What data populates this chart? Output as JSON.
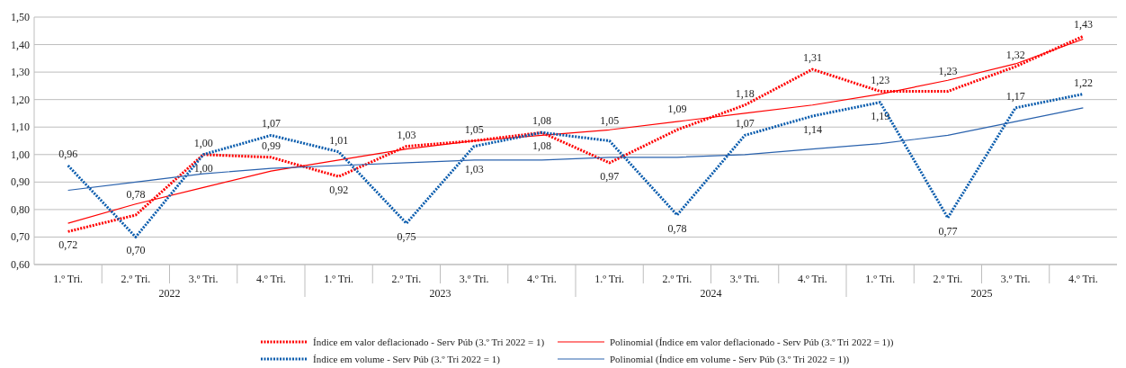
{
  "chart_data": {
    "type": "line",
    "categories": [
      "1.º Tri.",
      "2.º Tri.",
      "3.º Tri.",
      "4.º Tri.",
      "1.º Tri.",
      "2.º Tri.",
      "3.º Tri.",
      "4.º Tri.",
      "1.º Tri.",
      "2.º Tri.",
      "3.º Tri.",
      "4.º Tri.",
      "1.º Tri.",
      "2.º Tri.",
      "3.º Tri.",
      "4.º Tri."
    ],
    "annotations": [
      "2022",
      "2023",
      "2024",
      "2025"
    ],
    "ylim": [
      0.6,
      1.5
    ],
    "yticks": [
      {
        "value": 0.6,
        "label": "0,60"
      },
      {
        "value": 0.7,
        "label": "0,70"
      },
      {
        "value": 0.8,
        "label": "0,80"
      },
      {
        "value": 0.9,
        "label": "0,90"
      },
      {
        "value": 1.0,
        "label": "1,00"
      },
      {
        "value": 1.1,
        "label": "1,10"
      },
      {
        "value": 1.2,
        "label": "1,20"
      },
      {
        "value": 1.3,
        "label": "1,30"
      },
      {
        "value": 1.4,
        "label": "1,40"
      },
      {
        "value": 1.5,
        "label": "1,50"
      }
    ],
    "grid": "y",
    "legend": "bottom",
    "marker": "none",
    "series": [
      {
        "name": "Índice em valor deflacionado - Serv Púb (3.º Tri 2022 = 1)",
        "color": "#ff0000",
        "line_style": "dotted",
        "values": [
          0.72,
          0.78,
          1.0,
          0.99,
          0.92,
          1.03,
          1.05,
          1.08,
          0.97,
          1.09,
          1.18,
          1.31,
          1.23,
          1.23,
          1.32,
          1.43
        ],
        "value_labels": [
          "0,72",
          "0,78",
          "1,00",
          "0,99",
          "0,92",
          "1,03",
          "1,05",
          "1,08",
          "0,97",
          "1,09",
          "1,18",
          "1,31",
          "1,23",
          "1,23",
          "1,32",
          "1,43"
        ]
      },
      {
        "name": "Polinomial (Índice em valor deflacionado - Serv Púb (3.º Tri 2022 = 1))",
        "color": "#ff0000",
        "line_style": "solid",
        "values": [
          0.75,
          0.82,
          0.88,
          0.94,
          0.98,
          1.02,
          1.05,
          1.07,
          1.09,
          1.12,
          1.15,
          1.18,
          1.22,
          1.27,
          1.33,
          1.42
        ]
      },
      {
        "name": "Índice em volume - Serv Púb (3.º Tri 2022 = 1)",
        "color": "#0a5cad",
        "line_style": "dotted",
        "values": [
          0.96,
          0.7,
          1.0,
          1.07,
          1.01,
          0.75,
          1.03,
          1.08,
          1.05,
          0.78,
          1.07,
          1.14,
          1.19,
          0.77,
          1.17,
          1.22
        ],
        "value_labels": [
          "0,96",
          "0,70",
          "1,00",
          "1,07",
          "1,01",
          "0,75",
          "1,03",
          "1,08",
          "1,05",
          "0,78",
          "1,07",
          "1,14",
          "1,19",
          "0,77",
          "1,17",
          "1,22"
        ]
      },
      {
        "name": "Polinomial (Índice em volume - Serv Púb (3.º Tri 2022 = 1))",
        "color": "#2a62ad",
        "line_style": "solid",
        "values": [
          0.87,
          0.9,
          0.93,
          0.95,
          0.96,
          0.97,
          0.98,
          0.98,
          0.99,
          0.99,
          1.0,
          1.02,
          1.04,
          1.07,
          1.12,
          1.17
        ]
      }
    ]
  }
}
